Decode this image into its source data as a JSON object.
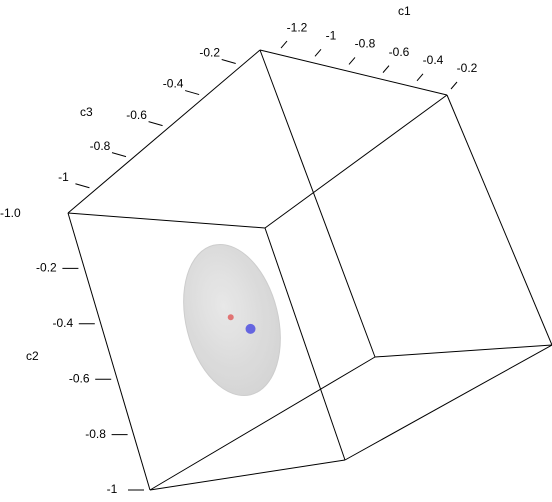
{
  "chart_data": {
    "type": "scatter3d",
    "xlabel": "c1",
    "ylabel": "c2",
    "zlabel": "c3",
    "xlim": [
      -1.3,
      -0.2
    ],
    "xticks": [
      -1.2,
      -1,
      -0.8,
      -0.6,
      -0.4,
      -0.2
    ],
    "ylim": [
      0,
      -1
    ],
    "yticks": [
      -0.2,
      -0.4,
      -0.6,
      -0.8,
      -1
    ],
    "zlim": [
      -0.1,
      -1.15
    ],
    "zticks": [
      -0.2,
      -0.4,
      -0.6,
      -0.8,
      -1
    ],
    "annotation": "-1.0",
    "series": [
      {
        "color": "#e06060",
        "x": [
          -0.74
        ],
        "y": [
          -0.4
        ],
        "z": [
          -0.96
        ]
      },
      {
        "color": "#5050e0",
        "x": [
          -0.68
        ],
        "y": [
          -0.45
        ],
        "z": [
          -0.93
        ]
      }
    ]
  }
}
